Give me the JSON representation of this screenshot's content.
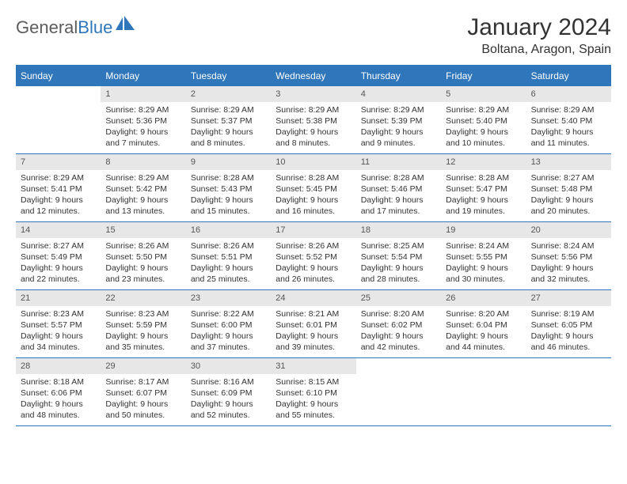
{
  "logo": {
    "text_gray": "General",
    "text_blue": "Blue"
  },
  "title": "January 2024",
  "location": "Boltana, Aragon, Spain",
  "colors": {
    "accent": "#2f76bb",
    "header_text": "#ffffff",
    "daybar_bg": "#e7e7e7",
    "text": "#333333",
    "logo_gray": "#5c5c5c"
  },
  "dows": [
    "Sunday",
    "Monday",
    "Tuesday",
    "Wednesday",
    "Thursday",
    "Friday",
    "Saturday"
  ],
  "start_offset": 1,
  "days": [
    {
      "n": 1,
      "sunrise": "8:29 AM",
      "sunset": "5:36 PM",
      "daylight": "9 hours and 7 minutes."
    },
    {
      "n": 2,
      "sunrise": "8:29 AM",
      "sunset": "5:37 PM",
      "daylight": "9 hours and 8 minutes."
    },
    {
      "n": 3,
      "sunrise": "8:29 AM",
      "sunset": "5:38 PM",
      "daylight": "9 hours and 8 minutes."
    },
    {
      "n": 4,
      "sunrise": "8:29 AM",
      "sunset": "5:39 PM",
      "daylight": "9 hours and 9 minutes."
    },
    {
      "n": 5,
      "sunrise": "8:29 AM",
      "sunset": "5:40 PM",
      "daylight": "9 hours and 10 minutes."
    },
    {
      "n": 6,
      "sunrise": "8:29 AM",
      "sunset": "5:40 PM",
      "daylight": "9 hours and 11 minutes."
    },
    {
      "n": 7,
      "sunrise": "8:29 AM",
      "sunset": "5:41 PM",
      "daylight": "9 hours and 12 minutes."
    },
    {
      "n": 8,
      "sunrise": "8:29 AM",
      "sunset": "5:42 PM",
      "daylight": "9 hours and 13 minutes."
    },
    {
      "n": 9,
      "sunrise": "8:28 AM",
      "sunset": "5:43 PM",
      "daylight": "9 hours and 15 minutes."
    },
    {
      "n": 10,
      "sunrise": "8:28 AM",
      "sunset": "5:45 PM",
      "daylight": "9 hours and 16 minutes."
    },
    {
      "n": 11,
      "sunrise": "8:28 AM",
      "sunset": "5:46 PM",
      "daylight": "9 hours and 17 minutes."
    },
    {
      "n": 12,
      "sunrise": "8:28 AM",
      "sunset": "5:47 PM",
      "daylight": "9 hours and 19 minutes."
    },
    {
      "n": 13,
      "sunrise": "8:27 AM",
      "sunset": "5:48 PM",
      "daylight": "9 hours and 20 minutes."
    },
    {
      "n": 14,
      "sunrise": "8:27 AM",
      "sunset": "5:49 PM",
      "daylight": "9 hours and 22 minutes."
    },
    {
      "n": 15,
      "sunrise": "8:26 AM",
      "sunset": "5:50 PM",
      "daylight": "9 hours and 23 minutes."
    },
    {
      "n": 16,
      "sunrise": "8:26 AM",
      "sunset": "5:51 PM",
      "daylight": "9 hours and 25 minutes."
    },
    {
      "n": 17,
      "sunrise": "8:26 AM",
      "sunset": "5:52 PM",
      "daylight": "9 hours and 26 minutes."
    },
    {
      "n": 18,
      "sunrise": "8:25 AM",
      "sunset": "5:54 PM",
      "daylight": "9 hours and 28 minutes."
    },
    {
      "n": 19,
      "sunrise": "8:24 AM",
      "sunset": "5:55 PM",
      "daylight": "9 hours and 30 minutes."
    },
    {
      "n": 20,
      "sunrise": "8:24 AM",
      "sunset": "5:56 PM",
      "daylight": "9 hours and 32 minutes."
    },
    {
      "n": 21,
      "sunrise": "8:23 AM",
      "sunset": "5:57 PM",
      "daylight": "9 hours and 34 minutes."
    },
    {
      "n": 22,
      "sunrise": "8:23 AM",
      "sunset": "5:59 PM",
      "daylight": "9 hours and 35 minutes."
    },
    {
      "n": 23,
      "sunrise": "8:22 AM",
      "sunset": "6:00 PM",
      "daylight": "9 hours and 37 minutes."
    },
    {
      "n": 24,
      "sunrise": "8:21 AM",
      "sunset": "6:01 PM",
      "daylight": "9 hours and 39 minutes."
    },
    {
      "n": 25,
      "sunrise": "8:20 AM",
      "sunset": "6:02 PM",
      "daylight": "9 hours and 42 minutes."
    },
    {
      "n": 26,
      "sunrise": "8:20 AM",
      "sunset": "6:04 PM",
      "daylight": "9 hours and 44 minutes."
    },
    {
      "n": 27,
      "sunrise": "8:19 AM",
      "sunset": "6:05 PM",
      "daylight": "9 hours and 46 minutes."
    },
    {
      "n": 28,
      "sunrise": "8:18 AM",
      "sunset": "6:06 PM",
      "daylight": "9 hours and 48 minutes."
    },
    {
      "n": 29,
      "sunrise": "8:17 AM",
      "sunset": "6:07 PM",
      "daylight": "9 hours and 50 minutes."
    },
    {
      "n": 30,
      "sunrise": "8:16 AM",
      "sunset": "6:09 PM",
      "daylight": "9 hours and 52 minutes."
    },
    {
      "n": 31,
      "sunrise": "8:15 AM",
      "sunset": "6:10 PM",
      "daylight": "9 hours and 55 minutes."
    }
  ],
  "labels": {
    "sunrise": "Sunrise:",
    "sunset": "Sunset:",
    "daylight": "Daylight:"
  }
}
